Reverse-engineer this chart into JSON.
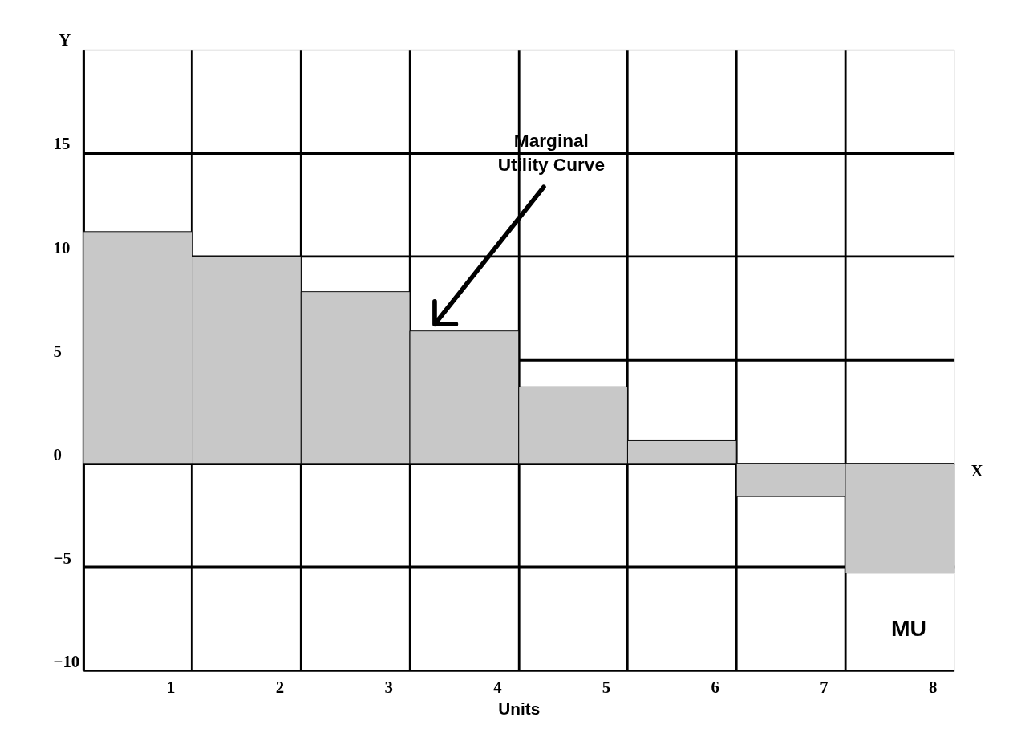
{
  "chart_data": {
    "type": "bar",
    "categories": [
      "1",
      "2",
      "3",
      "4",
      "5",
      "6",
      "7",
      "8",
      null
    ],
    "values": [
      11.2,
      10,
      8.3,
      6.4,
      3.7,
      1.1,
      -1.6,
      -5.3,
      null
    ],
    "color": "#c8c8c8",
    "xlabel": "Units",
    "ylabel": "Y",
    "ylim": [
      -10,
      20
    ],
    "yticks": [
      -10,
      -5,
      0,
      5,
      10,
      15
    ],
    "grid": true,
    "annotations": [
      "Marginal Utility Curve",
      "X",
      "MU"
    ]
  }
}
